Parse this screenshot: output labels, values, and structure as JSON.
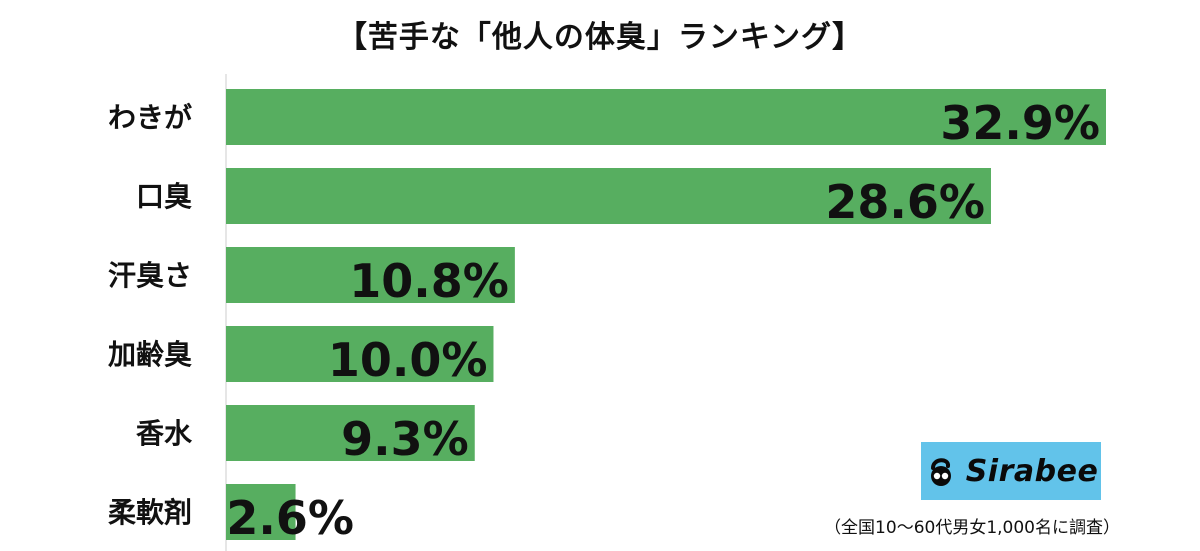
{
  "title": "【苦手な「他人の体臭」ランキング】",
  "footnote": "（全国10〜60代男女1,000名に調査）",
  "logo": {
    "text": "Sirabee",
    "icon": "sirabee-logo-icon",
    "background": "#62c3ea"
  },
  "colors": {
    "bar": "#57ae60",
    "axis": "#cccccc"
  },
  "chart_data": {
    "type": "bar",
    "orientation": "horizontal",
    "title": "【苦手な「他人の体臭」ランキング】",
    "categories": [
      "わきが",
      "口臭",
      "汗臭さ",
      "加齢臭",
      "香水",
      "柔軟剤"
    ],
    "values": [
      32.9,
      28.6,
      10.8,
      10.0,
      9.3,
      2.6
    ],
    "value_labels": [
      "32.9%",
      "28.6%",
      "10.8%",
      "10.0%",
      "9.3%",
      "2.6%"
    ],
    "unit": "%",
    "xlim": [
      0,
      35
    ],
    "grid": false,
    "legend": "none"
  }
}
